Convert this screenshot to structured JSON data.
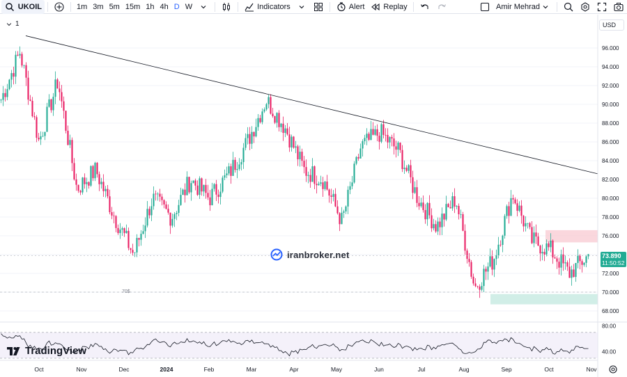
{
  "toolbar": {
    "symbol": "UKOIL",
    "timeframes": [
      "1m",
      "3m",
      "5m",
      "15m",
      "1h",
      "4h",
      "D",
      "W"
    ],
    "active_timeframe": "D",
    "indicators_label": "Indicators",
    "alert_label": "Alert",
    "replay_label": "Replay",
    "user_name": "Amir Mehrad"
  },
  "chart_header": {
    "interval": "1",
    "currency": "USD"
  },
  "price_axis": {
    "ticks": [
      "96.000",
      "94.000",
      "92.000",
      "90.000",
      "88.000",
      "86.000",
      "84.000",
      "82.000",
      "80.000",
      "78.000",
      "76.000",
      "74.000",
      "72.000",
      "70.000",
      "68.000"
    ]
  },
  "rsi_axis": {
    "ticks": [
      "80.00",
      "40.00"
    ]
  },
  "time_axis": {
    "ticks": [
      "Oct",
      "Nov",
      "Dec",
      "2024",
      "Feb",
      "Mar",
      "Apr",
      "May",
      "Jun",
      "Jul",
      "Aug",
      "Sep",
      "Oct",
      "Nov"
    ]
  },
  "last_price": {
    "value": "73.890",
    "countdown": "11:50:52"
  },
  "annotation_70": "70$",
  "watermark": "iranbroker.net",
  "brand": "TradingView",
  "colors": {
    "up": "#22ab94",
    "down": "#e91e63",
    "accent": "#2962ff",
    "rsi_bg": "#ede7f6",
    "supply_zone": "#f8c9d1",
    "demand_zone": "#c9ebe3"
  },
  "chart_data": {
    "type": "candlestick",
    "symbol": "UKOIL",
    "x_range": [
      "Sep 2023",
      "Nov 2024"
    ],
    "ylim": [
      67,
      98
    ],
    "close_path": [
      [
        "Sep 2023",
        90.5
      ],
      [
        "Sep 2023",
        95.6
      ],
      [
        "Oct 2023",
        86.0
      ],
      [
        "Oct 2023",
        92.5
      ],
      [
        "Nov 2023",
        81.0
      ],
      [
        "Nov 2023",
        83.0
      ],
      [
        "Nov 2023",
        78.0
      ],
      [
        "Dec 2023",
        74.0
      ],
      [
        "Jan 2024",
        80.0
      ],
      [
        "Jan 2024",
        78.0
      ],
      [
        "Feb 2024",
        82.0
      ],
      [
        "Feb 2024",
        80.0
      ],
      [
        "Mar 2024",
        82.5
      ],
      [
        "Mar 2024",
        86.0
      ],
      [
        "Apr 2024",
        90.5
      ],
      [
        "Apr 2024",
        87.5
      ],
      [
        "May 2024",
        83.0
      ],
      [
        "May 2024",
        82.0
      ],
      [
        "Jun 2024",
        77.5
      ],
      [
        "Jun 2024",
        85.5
      ],
      [
        "Jul 2024",
        87.0
      ],
      [
        "Jul 2024",
        85.0
      ],
      [
        "Aug 2024",
        80.0
      ],
      [
        "Aug 2024",
        77.0
      ],
      [
        "Aug 2024",
        80.0
      ],
      [
        "Sep 2024",
        70.5
      ],
      [
        "Sep 2024",
        73.5
      ],
      [
        "Oct 2024",
        80.5
      ],
      [
        "Oct 2024",
        75.5
      ],
      [
        "Oct 2024",
        74.5
      ],
      [
        "Nov 2024",
        72.0
      ],
      [
        "Nov 2024",
        73.9
      ]
    ],
    "trendline": {
      "from": [
        "Sep 2023",
        97.3
      ],
      "to": [
        "Nov 2024",
        82.6
      ]
    },
    "horizontal_line": 70,
    "supply_zone": [
      75.3,
      76.6
    ],
    "demand_zone": [
      68.7,
      69.8
    ],
    "rsi": {
      "ylim": [
        30,
        85
      ],
      "bands": [
        70,
        30
      ],
      "last": 45
    }
  }
}
